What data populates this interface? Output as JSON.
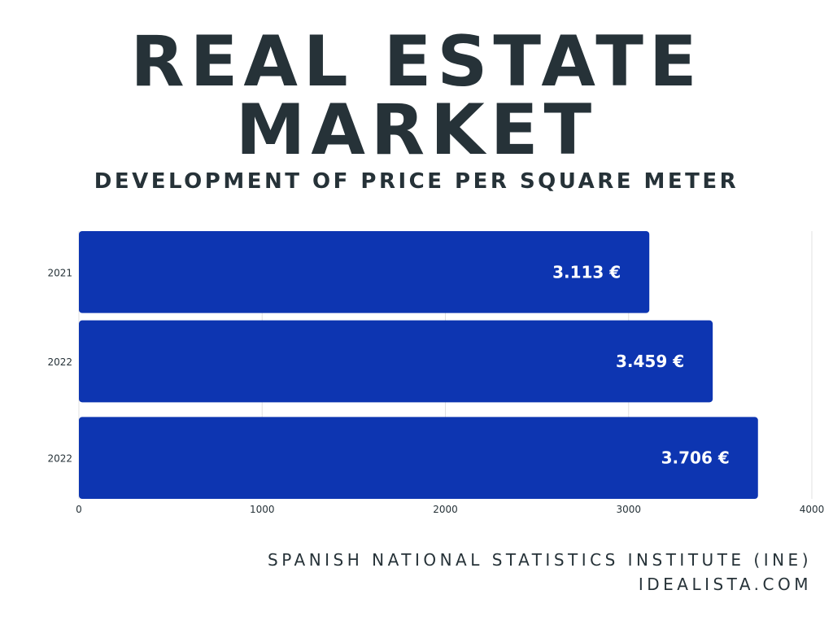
{
  "header": {
    "title_line_1": "REAL ESTATE",
    "title_line_2": "MARKET",
    "subtitle": "DEVELOPMENT OF PRICE PER SQUARE METER"
  },
  "footer": {
    "source_line_1": "SPANISH NATIONAL STATISTICS INSTITUTE (INE)",
    "source_line_2": "IDEALISTA.COM"
  },
  "colors": {
    "bar": "#0d35b1",
    "text": "#263238",
    "gridline": "#e0e0e0",
    "value_label": "#ffffff"
  },
  "chart_data": {
    "type": "bar",
    "orientation": "horizontal",
    "categories": [
      "2021",
      "2022",
      "2022"
    ],
    "values": [
      3113,
      3459,
      3706
    ],
    "data_labels": [
      "3.113 €",
      "3.459 €",
      "3.706 €"
    ],
    "x_ticks": [
      "0",
      "1000",
      "2000",
      "3000",
      "4000"
    ],
    "xlim": [
      0,
      4000
    ],
    "grid": true,
    "legend": "none"
  }
}
